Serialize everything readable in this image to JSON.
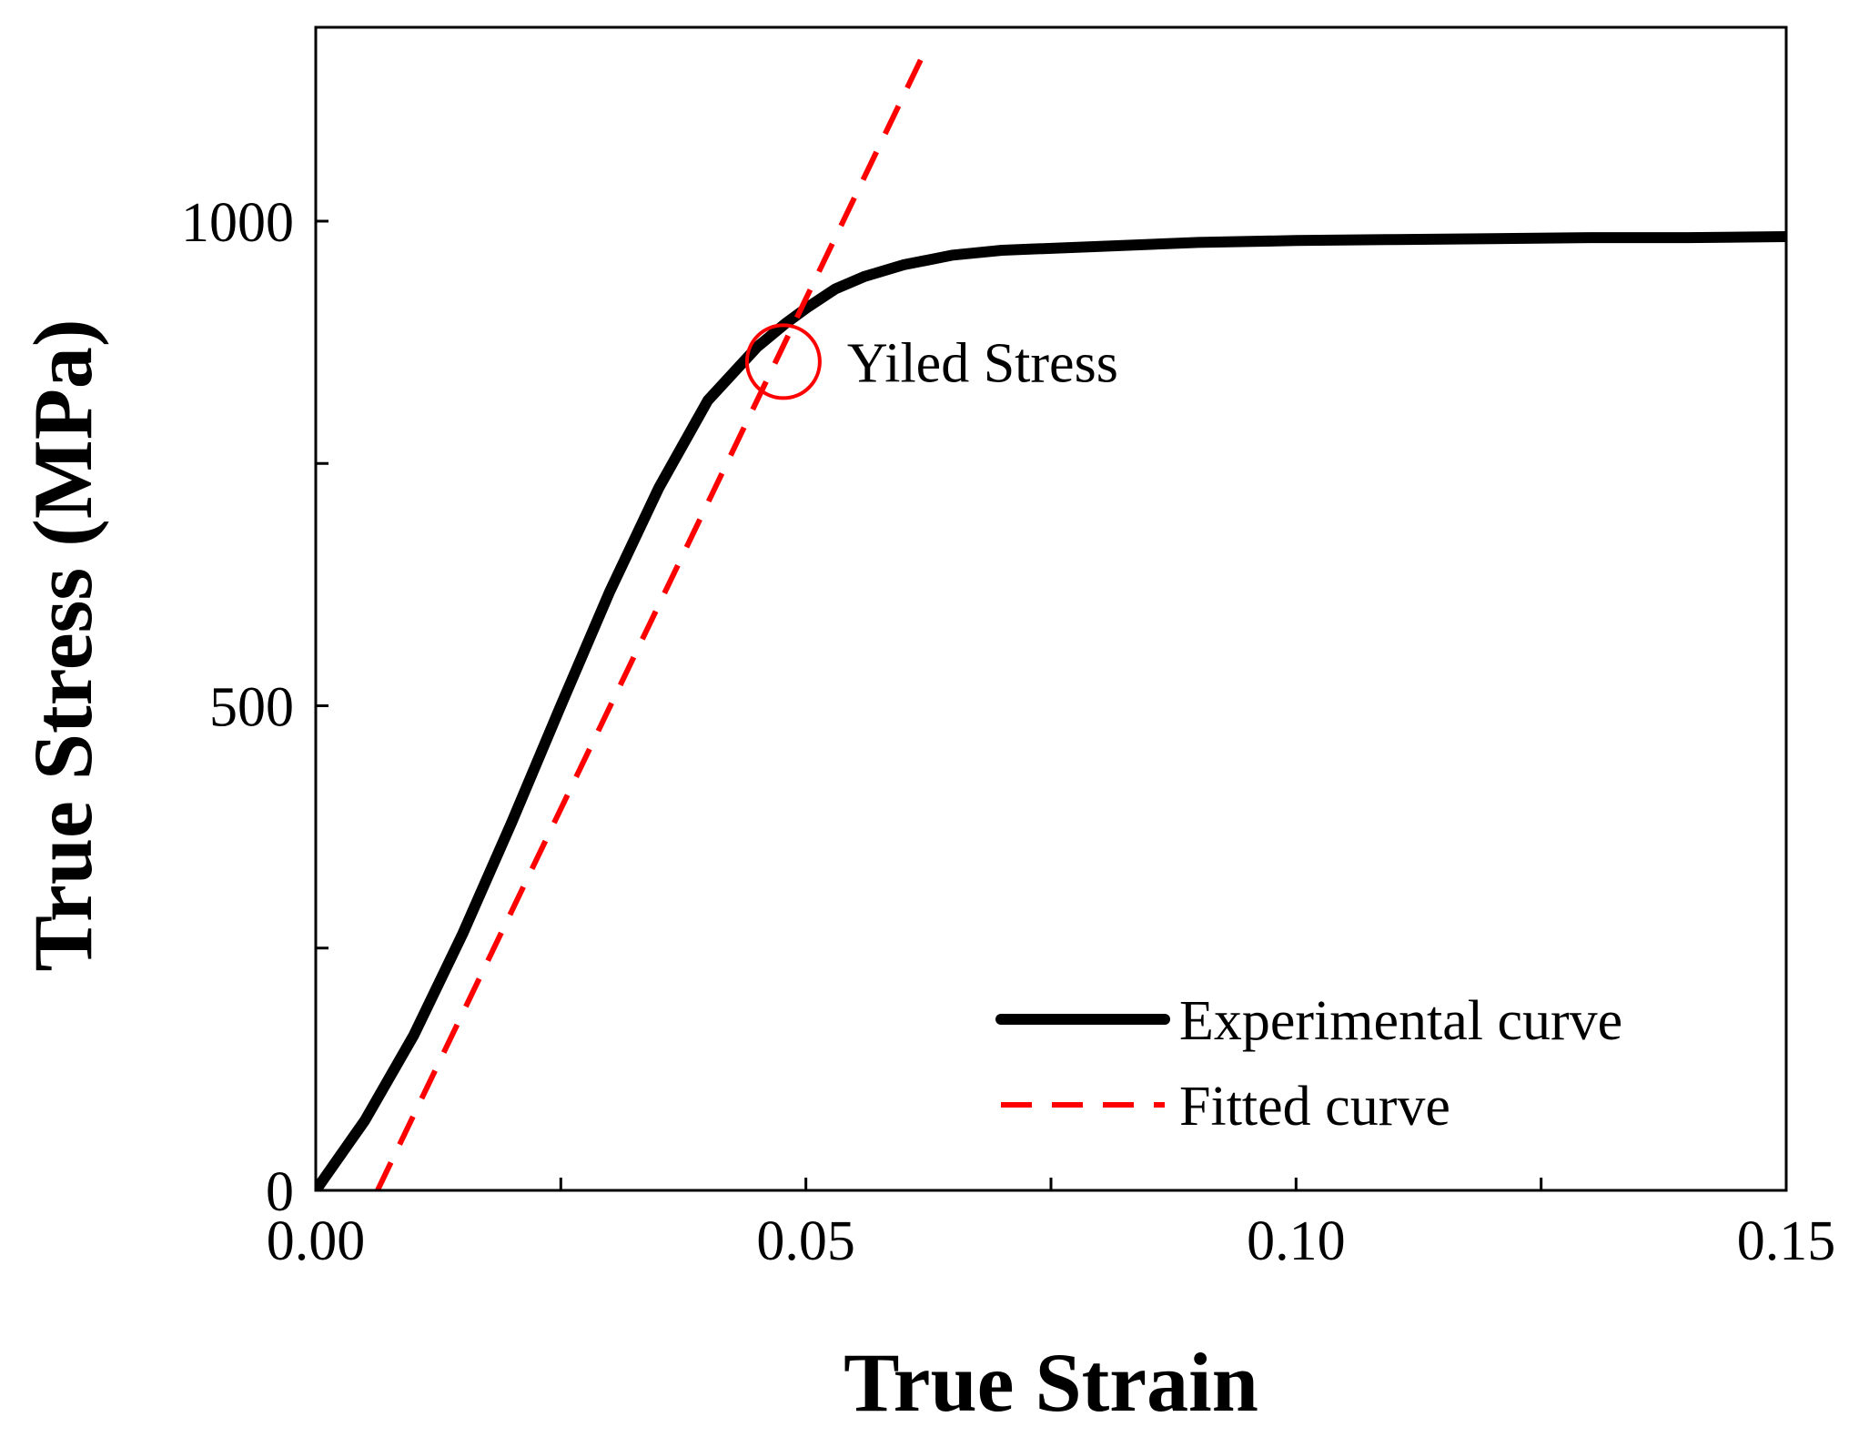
{
  "chart_data": {
    "type": "line",
    "title": "",
    "xlabel": "True Strain",
    "ylabel": "True Stress (MPa)",
    "xlim": [
      0,
      0.15
    ],
    "ylim": [
      0,
      1200
    ],
    "x_ticks": [
      0,
      0.025,
      0.05,
      0.075,
      0.1,
      0.125,
      0.15
    ],
    "x_tick_labels": [
      "0.00",
      "",
      "0.05",
      "",
      "0.10",
      "",
      "0.15"
    ],
    "y_ticks": [
      0,
      250,
      500,
      750,
      1000
    ],
    "y_tick_labels": [
      "0",
      "",
      "500",
      "",
      "1000"
    ],
    "grid": false,
    "legend_position": "bottom-right",
    "series": [
      {
        "name": "Experimental curve",
        "style": "solid",
        "color": "#000000",
        "x": [
          0,
          0.005,
          0.01,
          0.015,
          0.02,
          0.025,
          0.03,
          0.035,
          0.04,
          0.045,
          0.048,
          0.05,
          0.053,
          0.056,
          0.06,
          0.065,
          0.07,
          0.08,
          0.09,
          0.1,
          0.11,
          0.12,
          0.13,
          0.14,
          0.15
        ],
        "y": [
          0,
          72,
          160,
          265,
          380,
          500,
          618,
          725,
          815,
          870,
          895,
          910,
          930,
          943,
          955,
          965,
          970,
          974,
          978,
          980,
          981,
          982,
          983,
          983,
          984
        ]
      },
      {
        "name": "Fitted curve",
        "style": "dashed",
        "color": "#ff0000",
        "x": [
          0.0063,
          0.0625
        ],
        "y": [
          0,
          1183
        ]
      }
    ],
    "annotations": [
      {
        "text": "Yiled Stress",
        "x": 0.0477,
        "y": 855,
        "marker": "circle",
        "marker_color": "#ff0000"
      }
    ]
  }
}
